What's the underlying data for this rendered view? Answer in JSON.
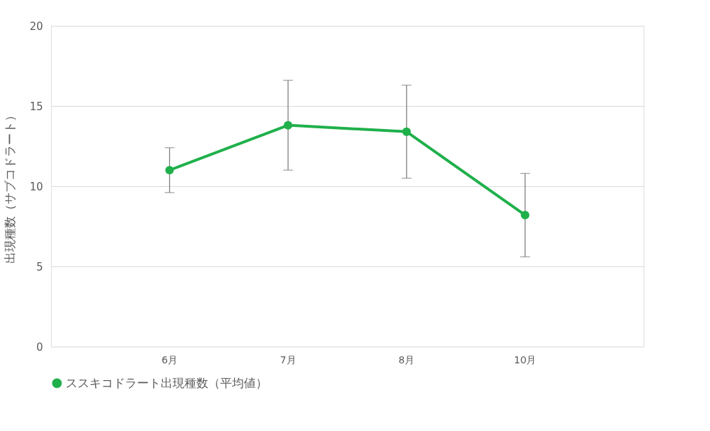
{
  "chart_data": {
    "type": "line",
    "ylabel": "出現種数（サブコドラート）",
    "categories": [
      "6月",
      "7月",
      "8月",
      "10月"
    ],
    "series": [
      {
        "name": "ススキコドラート出現種数（平均値）",
        "color": "#1fb04b",
        "values": [
          11.0,
          13.8,
          13.4,
          8.2
        ],
        "errors": [
          1.4,
          2.8,
          2.9,
          2.6
        ]
      }
    ],
    "ylim": [
      0,
      20
    ],
    "yticks": [
      0,
      5,
      10,
      15,
      20
    ],
    "grid": "y",
    "legend": "bottom",
    "marker": "circle",
    "line_style": "solid"
  }
}
